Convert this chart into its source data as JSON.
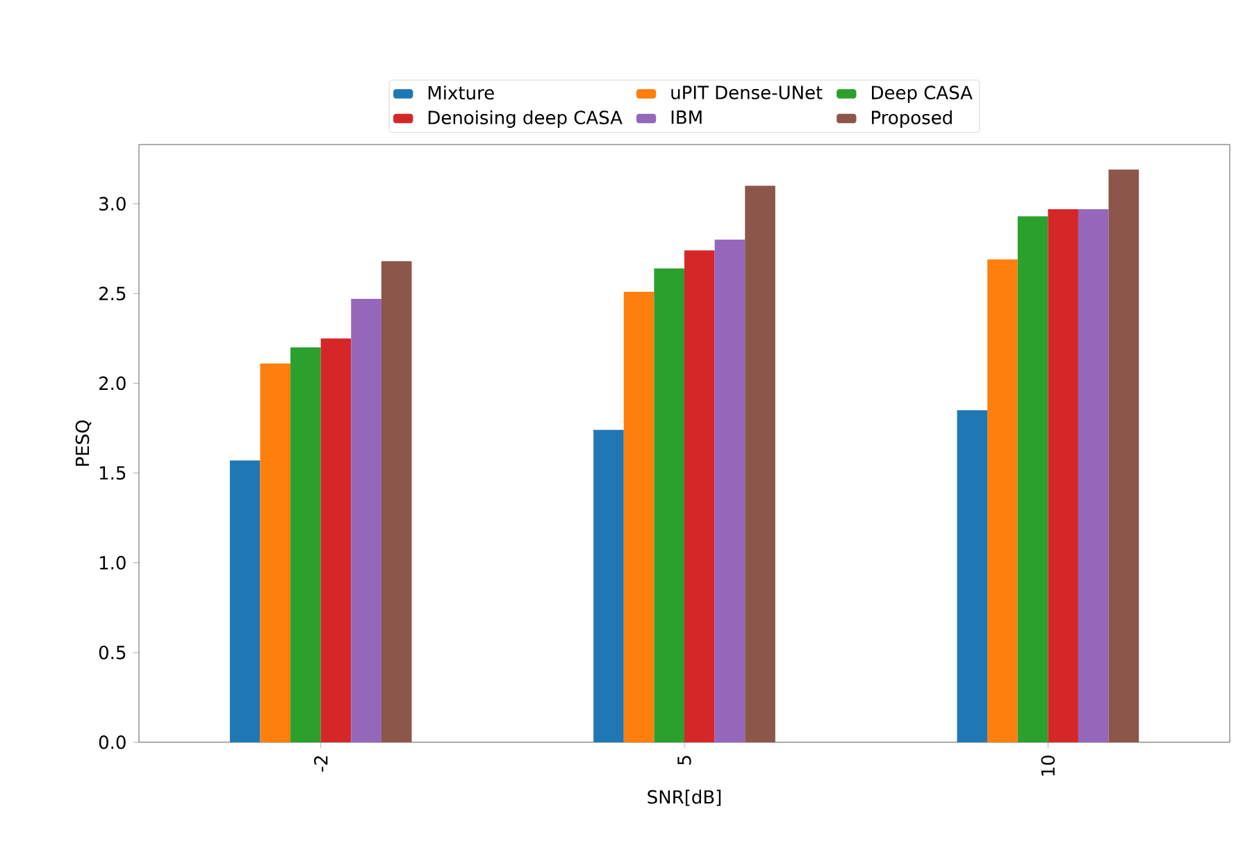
{
  "chart_data": {
    "type": "bar",
    "xlabel": "SNR[dB]",
    "ylabel": "PESQ",
    "categories": [
      "-2",
      "5",
      "10"
    ],
    "series": [
      {
        "name": "Mixture",
        "color": "#1f77b4",
        "values": [
          1.57,
          1.74,
          1.85
        ]
      },
      {
        "name": "uPIT Dense-UNet",
        "color": "#ff7f0e",
        "values": [
          2.11,
          2.51,
          2.69
        ]
      },
      {
        "name": "Deep CASA",
        "color": "#2ca02c",
        "values": [
          2.2,
          2.64,
          2.93
        ]
      },
      {
        "name": "Denoising deep CASA",
        "color": "#d62728",
        "values": [
          2.25,
          2.74,
          2.97
        ]
      },
      {
        "name": "IBM",
        "color": "#9467bd",
        "values": [
          2.47,
          2.8,
          2.97
        ]
      },
      {
        "name": "Proposed",
        "color": "#8c564b",
        "values": [
          2.68,
          3.1,
          3.19
        ]
      }
    ],
    "ylim": [
      0,
      3.33
    ],
    "yticks": [
      {
        "value": 0,
        "label": "0.0"
      },
      0.5,
      {
        "value": 1,
        "label": "1.0"
      },
      1.5,
      {
        "value": 2,
        "label": "2.0"
      },
      2.5,
      {
        "value": 3,
        "label": "3.0"
      }
    ],
    "grid": false,
    "legend": "top"
  }
}
